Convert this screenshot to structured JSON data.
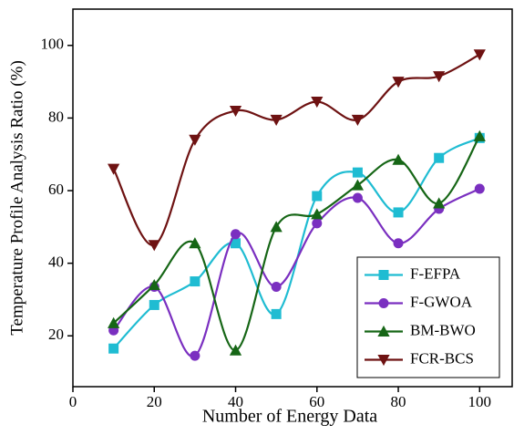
{
  "chart_data": {
    "type": "line",
    "x_label": "Number of Energy Data",
    "y_label": "Temperature Profile Analysis Ratio (%)",
    "x": [
      10,
      20,
      30,
      40,
      50,
      60,
      70,
      80,
      90,
      100
    ],
    "series": [
      {
        "name": "F-EFPA",
        "color": "#1fbcd2",
        "marker": "square",
        "values": [
          16.5,
          28.5,
          35,
          45.5,
          26,
          58.5,
          65,
          54,
          69,
          74.5
        ]
      },
      {
        "name": "F-GWOA",
        "color": "#7a2fc0",
        "marker": "circle",
        "values": [
          21.5,
          33.5,
          14.5,
          48,
          33.5,
          51,
          58,
          45.5,
          55,
          60.5
        ]
      },
      {
        "name": "BM-BWO",
        "color": "#166616",
        "marker": "triangle-up",
        "values": [
          23.5,
          34,
          45.5,
          16,
          50,
          53.5,
          61.5,
          68.5,
          56.5,
          75
        ]
      },
      {
        "name": "FCR-BCS",
        "color": "#6e1212",
        "marker": "triangle-down",
        "values": [
          66,
          45,
          74,
          82,
          79.5,
          84.5,
          79.5,
          90,
          91.5,
          97.5
        ]
      }
    ],
    "xlim": [
      0,
      108
    ],
    "xticks": [
      0,
      20,
      40,
      60,
      80,
      100
    ],
    "ylim": [
      6,
      110
    ],
    "yticks": [
      20,
      40,
      60,
      80,
      100
    ],
    "legend": "lower right",
    "smooth": true
  }
}
